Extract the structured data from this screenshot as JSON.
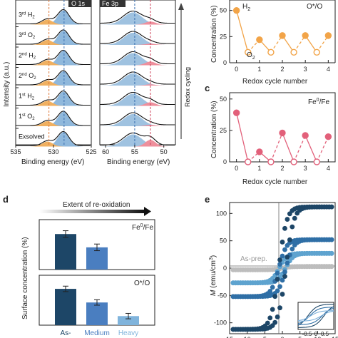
{
  "xps_left": {
    "title": "O 1s",
    "xlabel": "Binding energy (eV)",
    "ylabel": "Intensity (a.u.)",
    "xticks": [
      "535",
      "530",
      "525"
    ],
    "rows": [
      {
        "pre": "3",
        "sup": "rd",
        "sub": "H",
        "subn": "2"
      },
      {
        "pre": "3",
        "sup": "rd",
        "sub": "O",
        "subn": "2"
      },
      {
        "pre": "2",
        "sup": "nd",
        "sub": "H",
        "subn": "2"
      },
      {
        "pre": "2",
        "sup": "nd",
        "sub": "O",
        "subn": "2"
      },
      {
        "pre": "1",
        "sup": "st",
        "sub": "H",
        "subn": "2"
      },
      {
        "pre": "1",
        "sup": "st",
        "sub": "O",
        "subn": "2"
      },
      {
        "pre": "Exsolved",
        "sup": "",
        "sub": "",
        "subn": ""
      }
    ]
  },
  "xps_mid": {
    "title": "Fe 3p",
    "xlabel": "Binding energy (eV)",
    "xticks": [
      "60",
      "55",
      "50"
    ],
    "side_label": "Redox cycling"
  },
  "panel_b": {
    "ylabel": "Concentration (%)",
    "xlabel": "Redox cycle number",
    "title": "O*/O",
    "label_h2": "H",
    "label_o2": "O",
    "xticks": [
      "0",
      "1",
      "2",
      "3",
      "4"
    ],
    "yticks": [
      "0",
      "25",
      "50"
    ],
    "color": "#f2a448"
  },
  "panel_c": {
    "letter": "c",
    "ylabel": "Concentration (%)",
    "xlabel": "Redox cycle number",
    "title": "Fe0/Fe",
    "xticks": [
      "0",
      "1",
      "2",
      "3",
      "4"
    ],
    "yticks": [
      "0",
      "25",
      "50"
    ],
    "color": "#e2607a"
  },
  "panel_d": {
    "letter": "d",
    "arrow_label": "Extent of re-oxidation",
    "ylabel": "Surface concentration (%)",
    "top_title": "Fe0/Fe",
    "bottom_title": "O*/O",
    "categories": [
      "As-",
      "Medium",
      "Heavy"
    ],
    "colors": [
      "#1d4667",
      "#4a7ec0",
      "#80b4dc"
    ]
  },
  "panel_e": {
    "letter": "e",
    "ylabel": "M (emu/cm3)",
    "series_label": "As-prep.",
    "yticks": [
      "100",
      "50",
      "0",
      "-50",
      "-100"
    ],
    "xticks": [
      "15",
      "10",
      "5",
      "0",
      "5",
      "10",
      "15"
    ],
    "inset_xticks": [
      "-0.5",
      "0",
      "0.5"
    ]
  },
  "chart_data": [
    {
      "type": "line",
      "title": "O*/O",
      "xlabel": "Redox cycle number",
      "ylabel": "Concentration (%)",
      "ylim": [
        0,
        60
      ],
      "xlim": [
        -0.3,
        4.3
      ],
      "x": [
        0,
        0.5,
        1,
        1.5,
        2,
        2.5,
        3,
        3.5,
        4
      ],
      "values": [
        50,
        10,
        22,
        10,
        26,
        10,
        26,
        10,
        26
      ],
      "states": [
        "H2",
        "O2",
        "H2",
        "O2",
        "H2",
        "O2",
        "H2",
        "O2",
        "H2"
      ]
    },
    {
      "type": "line",
      "title": "Fe0/Fe",
      "xlabel": "Redox cycle number",
      "ylabel": "Concentration (%)",
      "ylim": [
        0,
        55
      ],
      "xlim": [
        -0.3,
        4.3
      ],
      "x": [
        0,
        0.5,
        1,
        1.5,
        2,
        2.5,
        3,
        3.5,
        4
      ],
      "values": [
        39,
        0,
        8,
        0,
        23,
        0,
        21,
        0,
        20
      ],
      "states": [
        "H2",
        "O2",
        "H2",
        "O2",
        "H2",
        "O2",
        "H2",
        "O2",
        "H2"
      ]
    },
    {
      "type": "bar",
      "title": "Fe0/Fe",
      "categories": [
        "As-",
        "Medium",
        "Heavy"
      ],
      "values": [
        32,
        20,
        0
      ],
      "errors": [
        3,
        3,
        0
      ]
    },
    {
      "type": "bar",
      "title": "O*/O",
      "categories": [
        "As-",
        "Medium",
        "Heavy"
      ],
      "values": [
        40,
        25,
        10
      ],
      "errors": [
        3,
        3,
        3
      ]
    },
    {
      "type": "scatter",
      "xlabel": "",
      "ylabel": "M (emu/cm3)",
      "xlim": [
        -15,
        15
      ],
      "ylim": [
        -120,
        120
      ],
      "series": [
        {
          "name": "",
          "color": "#1d4667",
          "Ms": 112,
          "Hc": 1.0
        },
        {
          "name": "",
          "color": "#2f6fa6",
          "Ms": 52,
          "Hc": 1.0
        },
        {
          "name": "",
          "color": "#5ea3cf",
          "Ms": 27,
          "Hc": 0.9
        },
        {
          "name": "As-prep.",
          "color": "#bdbdbd",
          "Ms": 3,
          "Hc": 0
        }
      ]
    }
  ]
}
